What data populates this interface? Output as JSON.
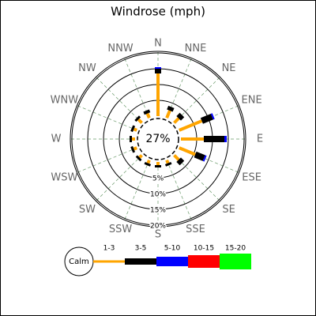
{
  "chart_data": {
    "type": "windrose",
    "title": "Windrose (mph)",
    "categories": [
      "N",
      "NNE",
      "NE",
      "ENE",
      "E",
      "ESE",
      "SE",
      "SSE",
      "S",
      "SSW",
      "SW",
      "WSW",
      "W",
      "WNW",
      "NW",
      "NNW"
    ],
    "series": [
      {
        "name": "1-3",
        "color": "#ffa500",
        "values": [
          13.5,
          2.5,
          2,
          7.75,
          7.25,
          5.5,
          2,
          1,
          1,
          1,
          1,
          1,
          1,
          1,
          1.5,
          1.5
        ]
      },
      {
        "name": "3-5",
        "color": "#000000",
        "values": [
          1.5,
          1.25,
          1.5,
          3.5,
          6.5,
          3,
          1.5,
          0.75,
          0.75,
          0.75,
          0.75,
          0.75,
          0.75,
          0.75,
          0.75,
          1
        ]
      },
      {
        "name": "5-10",
        "color": "#0000ff",
        "values": [
          0.5,
          0,
          0,
          0.5,
          0.75,
          0.5,
          0,
          0,
          0,
          0,
          0,
          0,
          0,
          0,
          0,
          0
        ]
      },
      {
        "name": "10-15",
        "color": "#ff0000",
        "values": [
          0,
          0,
          0,
          0,
          0,
          0,
          0,
          0,
          0,
          0,
          0,
          0,
          0,
          0,
          0,
          0
        ]
      },
      {
        "name": "15-20",
        "color": "#00ff00",
        "values": [
          0,
          0,
          0,
          0,
          0,
          0,
          0,
          0,
          0,
          0,
          0,
          0,
          0,
          0,
          0,
          0
        ]
      }
    ],
    "calm": {
      "name": "Calm",
      "values": [
        27
      ],
      "value_labels": [
        "27%"
      ]
    },
    "rlim": [
      0,
      20
    ],
    "rticks": [
      {
        "value": 5,
        "label": "5%"
      },
      {
        "value": 10,
        "label": "10%"
      },
      {
        "value": 15,
        "label": "15%"
      },
      {
        "value": 20,
        "label": "20%"
      }
    ],
    "grid": true
  }
}
